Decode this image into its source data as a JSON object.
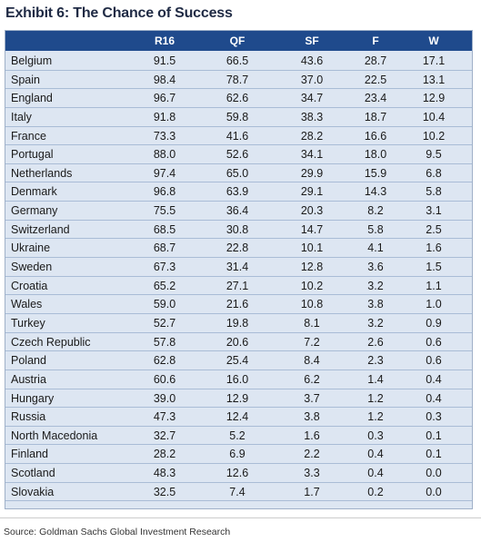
{
  "title": "Exhibit 6: The Chance of Success",
  "columns": [
    "",
    "R16",
    "QF",
    "SF",
    "F",
    "W"
  ],
  "rows": [
    [
      "Belgium",
      "91.5",
      "66.5",
      "43.6",
      "28.7",
      "17.1"
    ],
    [
      "Spain",
      "98.4",
      "78.7",
      "37.0",
      "22.5",
      "13.1"
    ],
    [
      "England",
      "96.7",
      "62.6",
      "34.7",
      "23.4",
      "12.9"
    ],
    [
      "Italy",
      "91.8",
      "59.8",
      "38.3",
      "18.7",
      "10.4"
    ],
    [
      "France",
      "73.3",
      "41.6",
      "28.2",
      "16.6",
      "10.2"
    ],
    [
      "Portugal",
      "88.0",
      "52.6",
      "34.1",
      "18.0",
      "9.5"
    ],
    [
      "Netherlands",
      "97.4",
      "65.0",
      "29.9",
      "15.9",
      "6.8"
    ],
    [
      "Denmark",
      "96.8",
      "63.9",
      "29.1",
      "14.3",
      "5.8"
    ],
    [
      "Germany",
      "75.5",
      "36.4",
      "20.3",
      "8.2",
      "3.1"
    ],
    [
      "Switzerland",
      "68.5",
      "30.8",
      "14.7",
      "5.8",
      "2.5"
    ],
    [
      "Ukraine",
      "68.7",
      "22.8",
      "10.1",
      "4.1",
      "1.6"
    ],
    [
      "Sweden",
      "67.3",
      "31.4",
      "12.8",
      "3.6",
      "1.5"
    ],
    [
      "Croatia",
      "65.2",
      "27.1",
      "10.2",
      "3.2",
      "1.1"
    ],
    [
      "Wales",
      "59.0",
      "21.6",
      "10.8",
      "3.8",
      "1.0"
    ],
    [
      "Turkey",
      "52.7",
      "19.8",
      "8.1",
      "3.2",
      "0.9"
    ],
    [
      "Czech Republic",
      "57.8",
      "20.6",
      "7.2",
      "2.6",
      "0.6"
    ],
    [
      "Poland",
      "62.8",
      "25.4",
      "8.4",
      "2.3",
      "0.6"
    ],
    [
      "Austria",
      "60.6",
      "16.0",
      "6.2",
      "1.4",
      "0.4"
    ],
    [
      "Hungary",
      "39.0",
      "12.9",
      "3.7",
      "1.2",
      "0.4"
    ],
    [
      "Russia",
      "47.3",
      "12.4",
      "3.8",
      "1.2",
      "0.3"
    ],
    [
      "North Macedonia",
      "32.7",
      "5.2",
      "1.6",
      "0.3",
      "0.1"
    ],
    [
      "Finland",
      "28.2",
      "6.9",
      "2.2",
      "0.4",
      "0.1"
    ],
    [
      "Scotland",
      "48.3",
      "12.6",
      "3.3",
      "0.4",
      "0.0"
    ],
    [
      "Slovakia",
      "32.5",
      "7.4",
      "1.7",
      "0.2",
      "0.0"
    ]
  ],
  "source": "Source: Goldman Sachs Global Investment Research",
  "colors": {
    "header_bg": "#1f4a8c",
    "table_bg": "#dde6f2",
    "row_line": "#a9bcd6"
  }
}
